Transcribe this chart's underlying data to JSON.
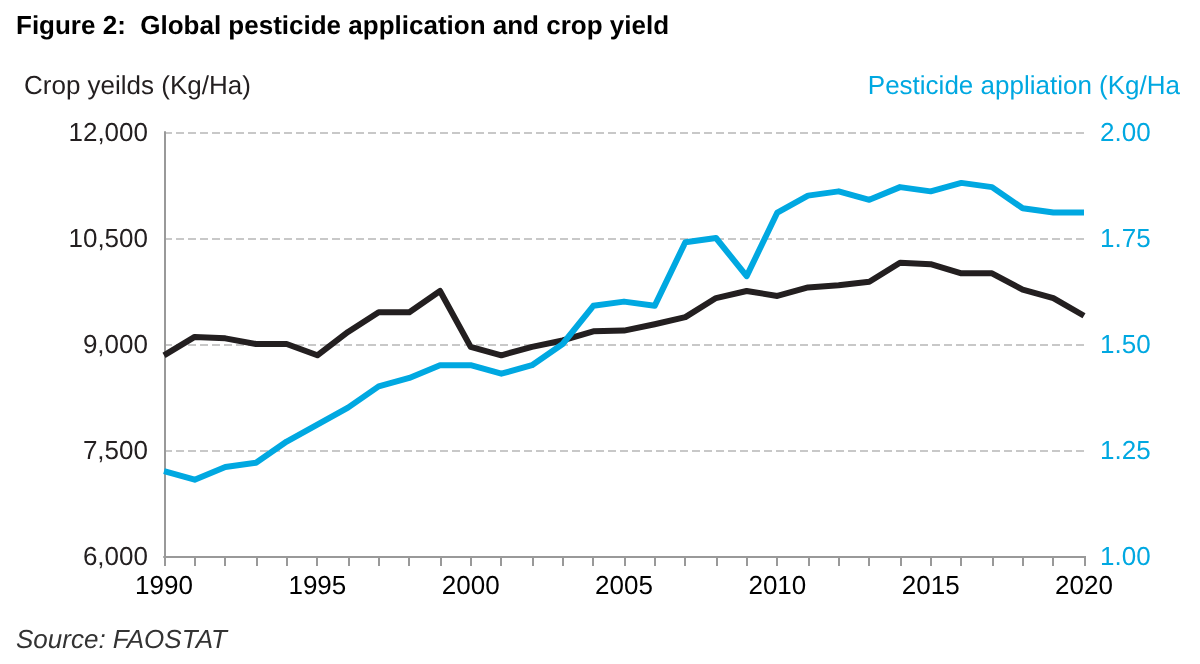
{
  "chart_data": {
    "type": "line",
    "title": "Figure 2:  Global pesticide application and crop yield",
    "ylabel": "Crop yeilds (Kg/Ha)",
    "y2label": "Pesticide appliation (Kg/Ha",
    "annotations": [
      "Source: FAOSTAT"
    ],
    "x": [
      1990,
      1991,
      1992,
      1993,
      1994,
      1995,
      1996,
      1997,
      1998,
      1999,
      2000,
      2001,
      2002,
      2003,
      2004,
      2005,
      2006,
      2007,
      2008,
      2009,
      2010,
      2011,
      2012,
      2013,
      2014,
      2015,
      2016,
      2017,
      2018,
      2019,
      2020
    ],
    "series": [
      {
        "color": "#231f20",
        "values": [
          8840,
          9100,
          9080,
          9000,
          9000,
          8840,
          9170,
          9450,
          9450,
          9750,
          8960,
          8840,
          8960,
          9050,
          9180,
          9190,
          9280,
          9380,
          9650,
          9750,
          9680,
          9800,
          9830,
          9880,
          10150,
          10130,
          10000,
          10000,
          9770,
          9650,
          9400
        ]
      },
      {
        "color": "#00a8e1",
        "axis": "y2",
        "values": [
          1.2,
          1.18,
          1.21,
          1.22,
          1.27,
          1.31,
          1.35,
          1.4,
          1.42,
          1.45,
          1.45,
          1.43,
          1.45,
          1.5,
          1.59,
          1.6,
          1.59,
          1.74,
          1.75,
          1.66,
          1.81,
          1.85,
          1.86,
          1.84,
          1.87,
          1.86,
          1.88,
          1.87,
          1.82,
          1.81,
          1.81
        ]
      }
    ],
    "xlim": [
      1990,
      2020
    ],
    "xticks": [
      1990,
      1995,
      2000,
      2005,
      2010,
      2015,
      2020
    ],
    "ylim": [
      6000,
      12000
    ],
    "yticks": [
      {
        "value": 6000,
        "label": "6,000"
      },
      {
        "value": 7500,
        "label": "7,500"
      },
      {
        "value": 9000,
        "label": "9,000"
      },
      {
        "value": 10500,
        "label": "10,500"
      },
      {
        "value": 12000,
        "label": "12,000"
      }
    ],
    "y2lim": [
      1.0,
      2.0
    ],
    "y2ticks": [
      {
        "value": 1,
        "label": "1.00"
      },
      {
        "value": 1.25,
        "label": "1.25"
      },
      {
        "value": 1.5,
        "label": "1.50"
      },
      {
        "value": 1.75,
        "label": "1.75"
      },
      {
        "value": 2,
        "label": "2.00"
      }
    ],
    "grid": "y",
    "marker": "none",
    "line_style": "solid"
  }
}
